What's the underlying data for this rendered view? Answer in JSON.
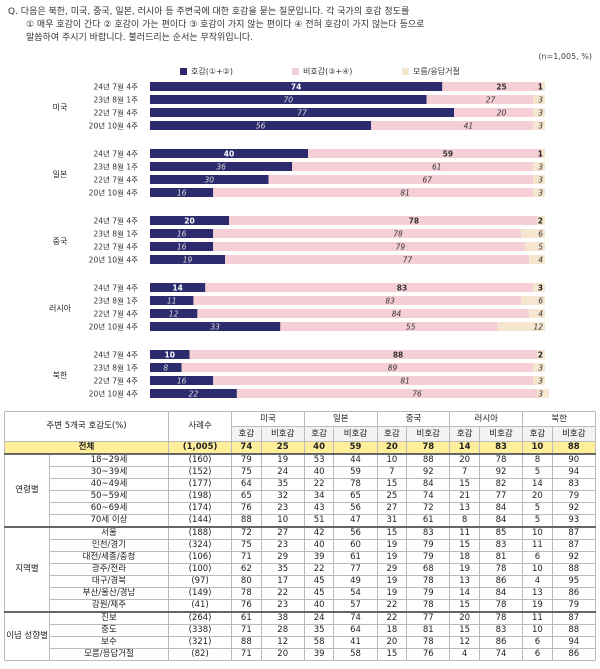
{
  "question": {
    "line1": "Q. 다음은 북한, 미국, 중국, 일본, 러시아 등 주변국에 대한 호감을 묻는 질문입니다. 각 국가의 호감 정도를",
    "line2": "① 매우 호감이 간다 ② 호감이 가는 편이다 ③ 호감이 가지 않는 편이다 ④ 전혀 호감이 가지 않는다 등으로",
    "line3": "말씀하여 주시기 바랍니다. 불러드리는 순서는 무작위입니다."
  },
  "unit": "(n=1,005, %)",
  "colors": {
    "favor": "#2b2b6e",
    "unfavor": "#f6cfd6",
    "dk": "#f6e6d0"
  },
  "chart_data": {
    "type": "bar",
    "stacked": true,
    "orientation": "horizontal",
    "legend": [
      "호감(①+②)",
      "비호감(③+④)",
      "모름/응답거절"
    ],
    "groups": [
      {
        "name": "미국",
        "rows": [
          {
            "label": "24년 7월 4주",
            "values": [
              74,
              25,
              1
            ]
          },
          {
            "label": "23년 8월 1주",
            "values": [
              70,
              27,
              3
            ]
          },
          {
            "label": "22년 7월 4주",
            "values": [
              77,
              20,
              3
            ]
          },
          {
            "label": "20년 10월 4주",
            "values": [
              56,
              41,
              3
            ]
          }
        ]
      },
      {
        "name": "일본",
        "rows": [
          {
            "label": "24년 7월 4주",
            "values": [
              40,
              59,
              1
            ]
          },
          {
            "label": "23년 8월 1주",
            "values": [
              36,
              61,
              3
            ]
          },
          {
            "label": "22년 7월 4주",
            "values": [
              30,
              67,
              3
            ]
          },
          {
            "label": "20년 10월 4주",
            "values": [
              16,
              81,
              3
            ]
          }
        ]
      },
      {
        "name": "중국",
        "rows": [
          {
            "label": "24년 7월 4주",
            "values": [
              20,
              78,
              2
            ]
          },
          {
            "label": "23년 8월 1주",
            "values": [
              16,
              78,
              6
            ]
          },
          {
            "label": "22년 7월 4주",
            "values": [
              16,
              79,
              5
            ]
          },
          {
            "label": "20년 10월 4주",
            "values": [
              19,
              77,
              4
            ]
          }
        ]
      },
      {
        "name": "러시아",
        "rows": [
          {
            "label": "24년 7월 4주",
            "values": [
              14,
              83,
              3
            ]
          },
          {
            "label": "23년 8월 1주",
            "values": [
              11,
              83,
              6
            ]
          },
          {
            "label": "22년 7월 4주",
            "values": [
              12,
              84,
              4
            ]
          },
          {
            "label": "20년 10월 4주",
            "values": [
              33,
              55,
              12
            ]
          }
        ]
      },
      {
        "name": "북한",
        "rows": [
          {
            "label": "24년 7월 4주",
            "values": [
              10,
              88,
              2
            ]
          },
          {
            "label": "23년 8월 1주",
            "values": [
              8,
              89,
              3
            ]
          },
          {
            "label": "22년 7월 4주",
            "values": [
              16,
              81,
              3
            ]
          },
          {
            "label": "20년 10월 4주",
            "values": [
              22,
              76,
              3
            ]
          }
        ]
      }
    ]
  },
  "table": {
    "title": "주변 5개국 호감도(%)",
    "n_header": "사례수",
    "countries": [
      "미국",
      "일본",
      "중국",
      "러시아",
      "북한"
    ],
    "sub": [
      "호감",
      "비호감"
    ],
    "total": {
      "label": "전체",
      "n": "(1,005)",
      "v": [
        "74",
        "25",
        "40",
        "59",
        "20",
        "78",
        "14",
        "83",
        "10",
        "88"
      ]
    },
    "groups": [
      {
        "name": "연령별",
        "rows": [
          {
            "label": "18~29세",
            "n": "(160)",
            "v": [
              "79",
              "19",
              "53",
              "44",
              "10",
              "88",
              "20",
              "78",
              "8",
              "90"
            ]
          },
          {
            "label": "30~39세",
            "n": "(152)",
            "v": [
              "75",
              "24",
              "40",
              "59",
              "7",
              "92",
              "7",
              "92",
              "5",
              "94"
            ]
          },
          {
            "label": "40~49세",
            "n": "(177)",
            "v": [
              "64",
              "35",
              "22",
              "78",
              "15",
              "84",
              "15",
              "82",
              "14",
              "83"
            ]
          },
          {
            "label": "50~59세",
            "n": "(198)",
            "v": [
              "65",
              "32",
              "34",
              "65",
              "25",
              "74",
              "21",
              "77",
              "20",
              "79"
            ]
          },
          {
            "label": "60~69세",
            "n": "(174)",
            "v": [
              "76",
              "23",
              "43",
              "56",
              "27",
              "72",
              "13",
              "84",
              "5",
              "92"
            ]
          },
          {
            "label": "70세 이상",
            "n": "(144)",
            "v": [
              "88",
              "10",
              "51",
              "47",
              "31",
              "61",
              "8",
              "84",
              "5",
              "93"
            ]
          }
        ]
      },
      {
        "name": "지역별",
        "rows": [
          {
            "label": "서울",
            "n": "(188)",
            "v": [
              "72",
              "27",
              "42",
              "56",
              "15",
              "83",
              "11",
              "85",
              "10",
              "87"
            ]
          },
          {
            "label": "인천/경기",
            "n": "(324)",
            "v": [
              "75",
              "23",
              "40",
              "60",
              "19",
              "79",
              "15",
              "83",
              "11",
              "87"
            ]
          },
          {
            "label": "대전/세종/충청",
            "n": "(106)",
            "v": [
              "71",
              "29",
              "39",
              "61",
              "19",
              "79",
              "18",
              "81",
              "6",
              "92"
            ]
          },
          {
            "label": "광주/전라",
            "n": "(100)",
            "v": [
              "62",
              "35",
              "22",
              "77",
              "29",
              "68",
              "19",
              "78",
              "10",
              "88"
            ]
          },
          {
            "label": "대구/경북",
            "n": "(97)",
            "v": [
              "80",
              "17",
              "45",
              "49",
              "19",
              "78",
              "13",
              "86",
              "4",
              "95"
            ]
          },
          {
            "label": "부산/울산/경남",
            "n": "(149)",
            "v": [
              "78",
              "22",
              "45",
              "54",
              "19",
              "79",
              "14",
              "84",
              "13",
              "86"
            ]
          },
          {
            "label": "강원/제주",
            "n": "(41)",
            "v": [
              "76",
              "23",
              "40",
              "57",
              "22",
              "78",
              "15",
              "78",
              "19",
              "79"
            ]
          }
        ]
      },
      {
        "name": "이념 성향별",
        "rows": [
          {
            "label": "진보",
            "n": "(264)",
            "v": [
              "61",
              "38",
              "24",
              "74",
              "22",
              "77",
              "20",
              "78",
              "11",
              "87"
            ]
          },
          {
            "label": "중도",
            "n": "(338)",
            "v": [
              "71",
              "28",
              "35",
              "64",
              "18",
              "81",
              "15",
              "83",
              "10",
              "88"
            ]
          },
          {
            "label": "보수",
            "n": "(321)",
            "v": [
              "88",
              "12",
              "58",
              "41",
              "20",
              "78",
              "12",
              "86",
              "6",
              "94"
            ]
          },
          {
            "label": "모름/응답거절",
            "n": "(82)",
            "v": [
              "71",
              "20",
              "39",
              "58",
              "15",
              "76",
              "4",
              "74",
              "6",
              "86"
            ]
          }
        ]
      }
    ]
  }
}
